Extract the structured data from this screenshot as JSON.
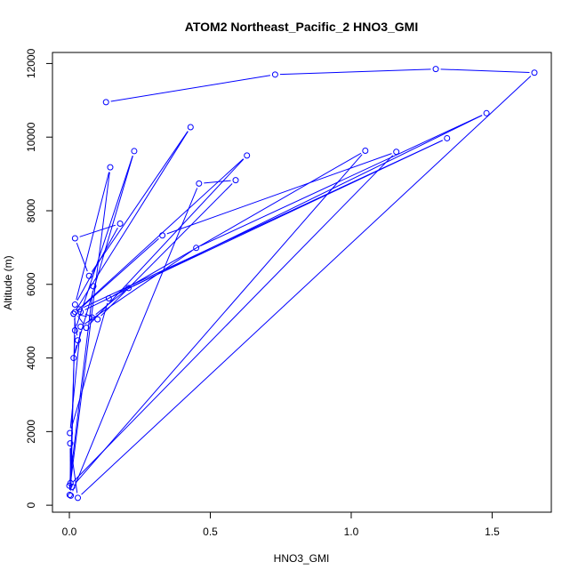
{
  "chart_data": {
    "type": "line",
    "title": "ATOM2 Northeast_Pacific_2 HNO3_GMI",
    "xlabel": "HNO3_GMI",
    "ylabel": "Altitude (m)",
    "xlim": [
      -0.06,
      1.71
    ],
    "ylim": [
      -190,
      12300
    ],
    "xticks": [
      0.0,
      0.5,
      1.0,
      1.5
    ],
    "xtick_labels": [
      "0.0",
      "0.5",
      "1.0",
      "1.5"
    ],
    "yticks": [
      0,
      2000,
      4000,
      6000,
      8000,
      10000,
      12000
    ],
    "ytick_labels": [
      "0",
      "2000",
      "4000",
      "6000",
      "8000",
      "10000",
      "12000"
    ],
    "grid": false,
    "color": "#0000ff",
    "marker": "open-circle",
    "series": [
      {
        "x": [
          0.13,
          0.73,
          1.3,
          1.65,
          0.03,
          0.003,
          0.004,
          0.145,
          0.02,
          0.18,
          0.02,
          0.07,
          0.43,
          0.015,
          0.03,
          0.015,
          0.23,
          0.02,
          0.001,
          0.01,
          1.05,
          0.14,
          0.002,
          0.04,
          0.45,
          1.48,
          0.04,
          0.1,
          0.59,
          0.46,
          0.005,
          0.02,
          0.06,
          0.63,
          0.015,
          0.08,
          0.21,
          1.34,
          0.035,
          0.33,
          1.16,
          0.0,
          0.085
        ],
        "y": [
          10950,
          11700,
          11850,
          11750,
          200,
          1680,
          600,
          9180,
          5450,
          7650,
          7250,
          6230,
          10270,
          5200,
          4480,
          4000,
          9620,
          4750,
          280,
          500,
          9630,
          5620,
          1960,
          4850,
          6990,
          10650,
          5250,
          5050,
          8830,
          8740,
          260,
          5250,
          4820,
          9500,
          5200,
          5100,
          5900,
          9970,
          5320,
          7330,
          9600,
          530,
          5950
        ]
      }
    ]
  }
}
